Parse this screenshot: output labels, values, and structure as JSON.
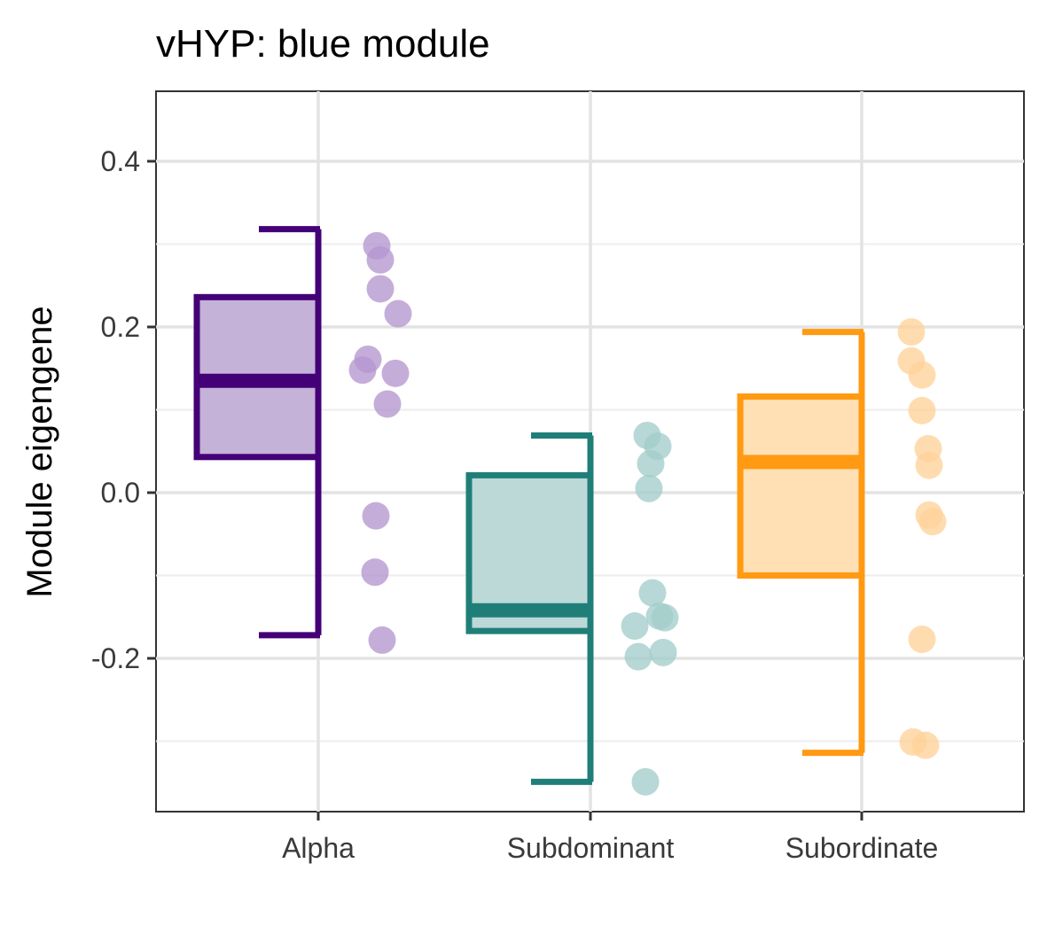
{
  "chart_data": {
    "type": "box",
    "title": "vHYP: blue module",
    "xlabel": "",
    "ylabel": "Module eigengene",
    "ylim": [
      -0.38,
      0.48
    ],
    "y_ticks": [
      -0.2,
      0.0,
      0.2,
      0.4
    ],
    "y_tick_labels": [
      "-0.2",
      "0.0",
      "0.2",
      "0.4"
    ],
    "grid": true,
    "categories": [
      "Alpha",
      "Subdominant",
      "Subordinate"
    ],
    "colors": {
      "Alpha": "#440077",
      "Subdominant": "#1f7f78",
      "Subordinate": "#ff9a12"
    },
    "fill_colors": {
      "Alpha": "#c5b2d8",
      "Subdominant": "#bcd9d8",
      "Subordinate": "#ffdfb4"
    },
    "point_colors": {
      "Alpha": "#b596cf",
      "Subdominant": "#a3cdca",
      "Subordinate": "#ffd29a"
    },
    "series": [
      {
        "category": "Alpha",
        "box": {
          "whisker_low": -0.172,
          "q1": 0.043,
          "median": 0.135,
          "q3": 0.236,
          "whisker_high": 0.318
        },
        "points": [
          0.298,
          0.281,
          0.246,
          0.216,
          0.161,
          0.148,
          0.144,
          0.107,
          -0.028,
          -0.096,
          -0.178
        ]
      },
      {
        "category": "Subdominant",
        "box": {
          "whisker_low": -0.349,
          "q1": -0.167,
          "median": -0.142,
          "q3": 0.021,
          "whisker_high": 0.069
        },
        "points": [
          0.069,
          0.056,
          0.035,
          0.005,
          -0.121,
          -0.149,
          -0.151,
          -0.161,
          -0.193,
          -0.198,
          -0.349
        ]
      },
      {
        "category": "Subordinate",
        "box": {
          "whisker_low": -0.314,
          "q1": -0.1,
          "median": 0.037,
          "q3": 0.116,
          "whisker_high": 0.194
        },
        "points": [
          0.194,
          0.159,
          0.142,
          0.099,
          0.053,
          0.033,
          -0.027,
          -0.035,
          -0.177,
          -0.301,
          -0.305
        ]
      }
    ]
  }
}
